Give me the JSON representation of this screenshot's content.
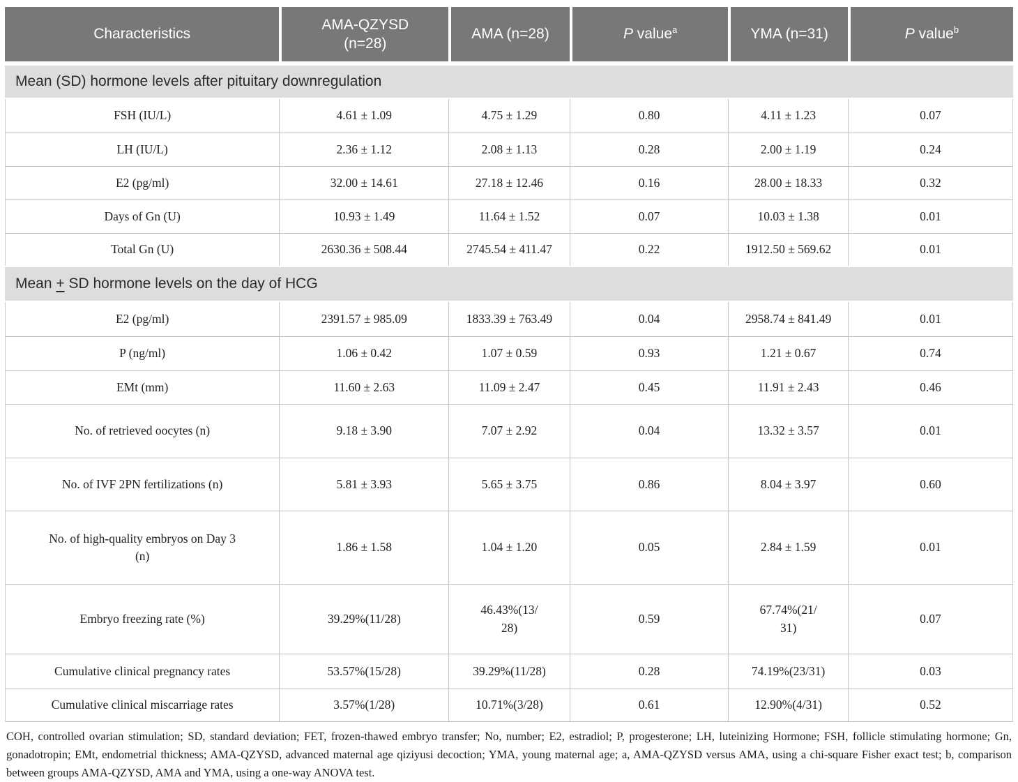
{
  "colors": {
    "header_bg": "#77787a",
    "header_text": "#ffffff",
    "section_band_bg": "#dcdddd",
    "row_border": "#bdbebf",
    "body_text": "#1f1f1f"
  },
  "table": {
    "columns": [
      {
        "label": "Characteristics"
      },
      {
        "label": "AMA-QZYSD\n(n=28)"
      },
      {
        "label": "AMA (n=28)"
      },
      {
        "p": "P",
        "rest": " value",
        "sup": "a"
      },
      {
        "label": "YMA (n=31)"
      },
      {
        "p": "P",
        "rest": " value",
        "sup": "b"
      }
    ],
    "sections": [
      {
        "title": "Mean (SD) hormone levels after pituitary downregulation",
        "rows": [
          {
            "label": "FSH (IU/L)",
            "values": [
              "4.61 ± 1.09",
              "4.75 ± 1.29",
              "0.80",
              "4.11 ± 1.23",
              "0.07"
            ]
          },
          {
            "label": "LH (IU/L)",
            "values": [
              "2.36 ± 1.12",
              "2.08 ± 1.13",
              "0.28",
              "2.00 ± 1.19",
              "0.24"
            ]
          },
          {
            "label": "E2 (pg/ml)",
            "values": [
              "32.00 ± 14.61",
              "27.18 ± 12.46",
              "0.16",
              "28.00 ± 18.33",
              "0.32"
            ]
          },
          {
            "label": "Days of Gn (U)",
            "values": [
              "10.93 ± 1.49",
              "11.64 ± 1.52",
              "0.07",
              "10.03 ± 1.38",
              "0.01"
            ]
          },
          {
            "label": "Total Gn (U)",
            "values": [
              "2630.36 ± 508.44",
              "2745.54 ± 411.47",
              "0.22",
              "1912.50 ± 569.62",
              "0.01"
            ]
          }
        ]
      },
      {
        "title_pre": "Mean ",
        "title_pm": "+",
        "title_post": " SD hormone levels on the day of HCG",
        "rows": [
          {
            "label": "E2 (pg/ml)",
            "values": [
              "2391.57 ± 985.09",
              "1833.39 ± 763.49",
              "0.04",
              "2958.74 ± 841.49",
              "0.01"
            ]
          },
          {
            "label": "P (ng/ml)",
            "values": [
              "1.06 ± 0.42",
              "1.07 ± 0.59",
              "0.93",
              "1.21 ± 0.67",
              "0.74"
            ]
          },
          {
            "label": "EMt (mm)",
            "values": [
              "11.60 ± 2.63",
              "11.09 ± 2.47",
              "0.45",
              "11.91 ± 2.43",
              "0.46"
            ]
          },
          {
            "label": "No. of retrieved oocytes (n)",
            "values": [
              "9.18 ± 3.90",
              "7.07 ± 2.92",
              "0.04",
              "13.32 ± 3.57",
              "0.01"
            ]
          },
          {
            "label": "No. of IVF 2PN fertilizations (n)",
            "values": [
              "5.81 ± 3.93",
              "5.65 ± 3.75",
              "0.86",
              "8.04 ± 3.97",
              "0.60"
            ]
          },
          {
            "label": "No. of high-quality embryos on Day 3\n(n)",
            "values": [
              "1.86 ± 1.58",
              "1.04 ± 1.20",
              "0.05",
              "2.84 ± 1.59",
              "0.01"
            ]
          },
          {
            "label": "Embryo freezing rate (%)",
            "values": [
              "39.29%(11/28)",
              "46.43%(13/\n28)",
              "0.59",
              "67.74%(21/\n31)",
              "0.07"
            ]
          },
          {
            "label": "Cumulative clinical pregnancy rates",
            "values": [
              "53.57%(15/28)",
              "39.29%(11/28)",
              "0.28",
              "74.19%(23/31)",
              "0.03"
            ]
          },
          {
            "label": "Cumulative clinical miscarriage rates",
            "values": [
              "3.57%(1/28)",
              "10.71%(3/28)",
              "0.61",
              "12.90%(4/31)",
              "0.52"
            ]
          }
        ]
      }
    ]
  },
  "footnote": "COH, controlled ovarian stimulation; SD, standard deviation; FET, frozen-thawed embryo transfer; No, number; E2, estradiol; P, progesterone; LH, luteinizing Hormone; FSH, follicle stimulating hormone; Gn, gonadotropin; EMt, endometrial thickness; AMA-QZYSD, advanced maternal age qiziyusi decoction; YMA, young maternal age; a, AMA-QZYSD versus AMA, using a chi-square Fisher exact test; b, comparison between groups AMA-QZYSD, AMA and YMA, using a one-way ANOVA test."
}
